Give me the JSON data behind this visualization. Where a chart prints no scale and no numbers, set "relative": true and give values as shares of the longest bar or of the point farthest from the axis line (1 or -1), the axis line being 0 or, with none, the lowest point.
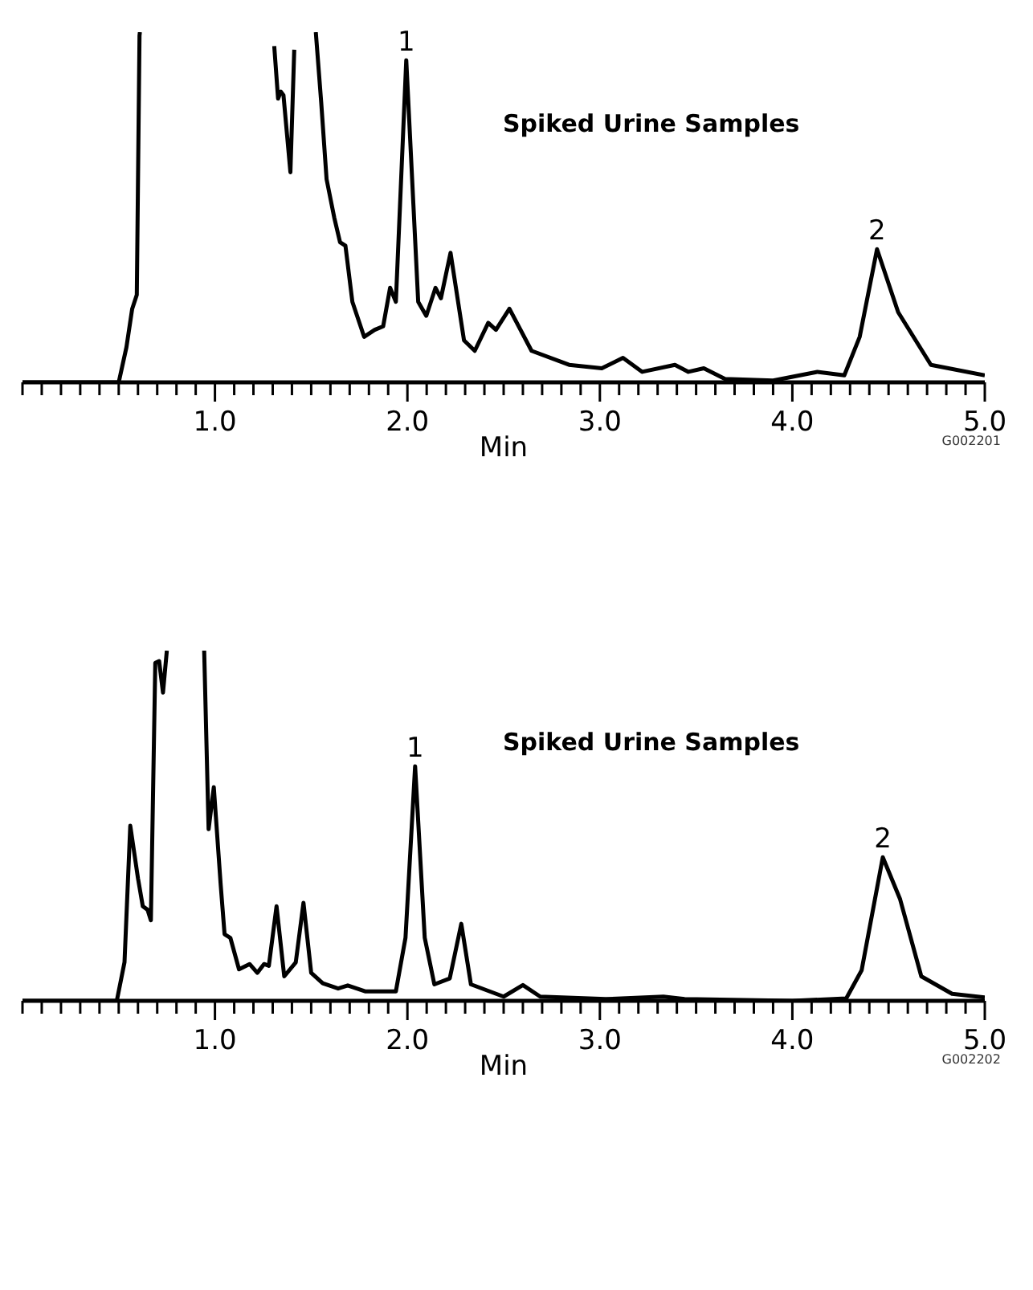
{
  "chart_data": [
    {
      "type": "line",
      "title": "Spiked Urine Samples",
      "xlabel": "Min",
      "relative": true,
      "color": "#000000",
      "tick_labels": "x",
      "xlim": [
        0,
        5
      ],
      "xticks": [
        {
          "value": 0,
          "label": null
        },
        {
          "value": 0.1,
          "label": null
        },
        {
          "value": 0.2,
          "label": null
        },
        {
          "value": 0.3,
          "label": null
        },
        {
          "value": 0.4,
          "label": null
        },
        {
          "value": 0.5,
          "label": null
        },
        {
          "value": 0.6,
          "label": null
        },
        {
          "value": 0.7,
          "label": null
        },
        {
          "value": 0.8,
          "label": null
        },
        {
          "value": 0.9,
          "label": null
        },
        {
          "value": 1,
          "label": "1.0"
        },
        {
          "value": 1.1,
          "label": null
        },
        {
          "value": 1.2,
          "label": null
        },
        {
          "value": 1.3,
          "label": null
        },
        {
          "value": 1.4,
          "label": null
        },
        {
          "value": 1.5,
          "label": null
        },
        {
          "value": 1.6,
          "label": null
        },
        {
          "value": 1.7,
          "label": null
        },
        {
          "value": 1.8,
          "label": null
        },
        {
          "value": 1.9,
          "label": null
        },
        {
          "value": 2,
          "label": "2.0"
        },
        {
          "value": 2.1,
          "label": null
        },
        {
          "value": 2.2,
          "label": null
        },
        {
          "value": 2.3,
          "label": null
        },
        {
          "value": 2.4,
          "label": null
        },
        {
          "value": 2.5,
          "label": null
        },
        {
          "value": 2.6,
          "label": null
        },
        {
          "value": 2.7,
          "label": null
        },
        {
          "value": 2.8,
          "label": null
        },
        {
          "value": 2.9,
          "label": null
        },
        {
          "value": 3,
          "label": "3.0"
        },
        {
          "value": 3.1,
          "label": null
        },
        {
          "value": 3.2,
          "label": null
        },
        {
          "value": 3.3,
          "label": null
        },
        {
          "value": 3.4,
          "label": null
        },
        {
          "value": 3.5,
          "label": null
        },
        {
          "value": 3.6,
          "label": null
        },
        {
          "value": 3.7,
          "label": null
        },
        {
          "value": 3.8,
          "label": null
        },
        {
          "value": 3.9,
          "label": null
        },
        {
          "value": 4,
          "label": "4.0"
        },
        {
          "value": 4.1,
          "label": null
        },
        {
          "value": 4.2,
          "label": null
        },
        {
          "value": 4.3,
          "label": null
        },
        {
          "value": 4.4,
          "label": null
        },
        {
          "value": 4.5,
          "label": null
        },
        {
          "value": 4.6,
          "label": null
        },
        {
          "value": 4.7,
          "label": null
        },
        {
          "value": 4.8,
          "label": null
        },
        {
          "value": 4.9,
          "label": null
        },
        {
          "value": 5,
          "label": "5.0"
        }
      ],
      "x": [
        0,
        0.5,
        0.54,
        0.57,
        0.594,
        0.608,
        0.61,
        1.3,
        1.308,
        1.328,
        1.342,
        1.356,
        1.392,
        1.412,
        1.45,
        1.524,
        1.552,
        1.58,
        1.62,
        1.65,
        1.678,
        1.714,
        1.775,
        1.83,
        1.874,
        1.91,
        1.94,
        1.994,
        2.056,
        2.098,
        2.146,
        2.174,
        2.224,
        2.294,
        2.35,
        2.42,
        2.46,
        2.53,
        2.645,
        2.84,
        3.01,
        3.12,
        3.22,
        3.39,
        3.46,
        3.54,
        3.65,
        3.9,
        4.13,
        4.27,
        4.35,
        4.44,
        4.55,
        4.72,
        5.0
      ],
      "values": [
        0,
        0,
        0.1,
        0.21,
        0.25,
        0.99,
        1,
        null,
        0.96,
        0.81,
        0.83,
        0.82,
        0.6,
        0.95,
        null,
        1,
        0.8,
        0.58,
        0.47,
        0.4,
        0.39,
        0.23,
        0.13,
        0.15,
        0.16,
        0.27,
        0.23,
        0.92,
        0.23,
        0.19,
        0.27,
        0.24,
        0.37,
        0.12,
        0.09,
        0.17,
        0.15,
        0.21,
        0.09,
        0.05,
        0.04,
        0.07,
        0.03,
        0.05,
        0.03,
        0.04,
        0.01,
        0.005,
        0.03,
        0.02,
        0.13,
        0.38,
        0.2,
        0.05,
        0.02
      ],
      "annotations": [
        {
          "text": "1",
          "x": 1.994,
          "y": 0.92
        },
        {
          "text": "2",
          "x": 4.44,
          "y": 0.38
        },
        "G002201"
      ]
    },
    {
      "type": "line",
      "title": "Spiked Urine Samples",
      "xlabel": "Min",
      "relative": true,
      "color": "#000000",
      "tick_labels": "x",
      "xlim": [
        0,
        5
      ],
      "xticks": [
        {
          "value": 0,
          "label": null
        },
        {
          "value": 0.1,
          "label": null
        },
        {
          "value": 0.2,
          "label": null
        },
        {
          "value": 0.3,
          "label": null
        },
        {
          "value": 0.4,
          "label": null
        },
        {
          "value": 0.5,
          "label": null
        },
        {
          "value": 0.6,
          "label": null
        },
        {
          "value": 0.7,
          "label": null
        },
        {
          "value": 0.8,
          "label": null
        },
        {
          "value": 0.9,
          "label": null
        },
        {
          "value": 1,
          "label": "1.0"
        },
        {
          "value": 1.1,
          "label": null
        },
        {
          "value": 1.2,
          "label": null
        },
        {
          "value": 1.3,
          "label": null
        },
        {
          "value": 1.4,
          "label": null
        },
        {
          "value": 1.5,
          "label": null
        },
        {
          "value": 1.6,
          "label": null
        },
        {
          "value": 1.7,
          "label": null
        },
        {
          "value": 1.8,
          "label": null
        },
        {
          "value": 1.9,
          "label": null
        },
        {
          "value": 2,
          "label": "2.0"
        },
        {
          "value": 2.1,
          "label": null
        },
        {
          "value": 2.2,
          "label": null
        },
        {
          "value": 2.3,
          "label": null
        },
        {
          "value": 2.4,
          "label": null
        },
        {
          "value": 2.5,
          "label": null
        },
        {
          "value": 2.6,
          "label": null
        },
        {
          "value": 2.7,
          "label": null
        },
        {
          "value": 2.8,
          "label": null
        },
        {
          "value": 2.9,
          "label": null
        },
        {
          "value": 3,
          "label": "3.0"
        },
        {
          "value": 3.1,
          "label": null
        },
        {
          "value": 3.2,
          "label": null
        },
        {
          "value": 3.3,
          "label": null
        },
        {
          "value": 3.4,
          "label": null
        },
        {
          "value": 3.5,
          "label": null
        },
        {
          "value": 3.6,
          "label": null
        },
        {
          "value": 3.7,
          "label": null
        },
        {
          "value": 3.8,
          "label": null
        },
        {
          "value": 3.9,
          "label": null
        },
        {
          "value": 4,
          "label": "4.0"
        },
        {
          "value": 4.1,
          "label": null
        },
        {
          "value": 4.2,
          "label": null
        },
        {
          "value": 4.3,
          "label": null
        },
        {
          "value": 4.4,
          "label": null
        },
        {
          "value": 4.5,
          "label": null
        },
        {
          "value": 4.6,
          "label": null
        },
        {
          "value": 4.7,
          "label": null
        },
        {
          "value": 4.8,
          "label": null
        },
        {
          "value": 4.9,
          "label": null
        },
        {
          "value": 5,
          "label": "5.0"
        }
      ],
      "x": [
        0,
        0.49,
        0.53,
        0.56,
        0.6,
        0.625,
        0.65,
        0.667,
        0.69,
        0.71,
        0.73,
        0.75,
        0.85,
        0.944,
        0.967,
        0.994,
        1.03,
        1.05,
        1.08,
        1.125,
        1.18,
        1.22,
        1.255,
        1.28,
        1.32,
        1.36,
        1.42,
        1.46,
        1.5,
        1.56,
        1.64,
        1.69,
        1.78,
        1.94,
        1.99,
        2.04,
        2.09,
        2.14,
        2.22,
        2.28,
        2.33,
        2.5,
        2.6,
        2.69,
        3.03,
        3.33,
        3.44,
        4.0,
        4.28,
        4.36,
        4.47,
        4.56,
        4.67,
        4.83,
        5.0
      ],
      "values": [
        0,
        0,
        0.11,
        0.5,
        0.35,
        0.27,
        0.26,
        0.23,
        0.965,
        0.97,
        0.88,
        1,
        null,
        1,
        0.49,
        0.61,
        0.33,
        0.19,
        0.18,
        0.09,
        0.105,
        0.08,
        0.105,
        0.1,
        0.27,
        0.07,
        0.11,
        0.28,
        0.08,
        0.05,
        0.035,
        0.044,
        0.027,
        0.027,
        0.18,
        0.67,
        0.18,
        0.047,
        0.064,
        0.22,
        0.047,
        0.012,
        0.045,
        0.012,
        0.005,
        0.012,
        0.005,
        0,
        0.007,
        0.087,
        0.41,
        0.29,
        0.07,
        0.02,
        0.01
      ],
      "annotations": [
        {
          "text": "1",
          "x": 2.04,
          "y": 0.67
        },
        {
          "text": "2",
          "x": 4.47,
          "y": 0.41
        },
        "G002202"
      ]
    }
  ]
}
